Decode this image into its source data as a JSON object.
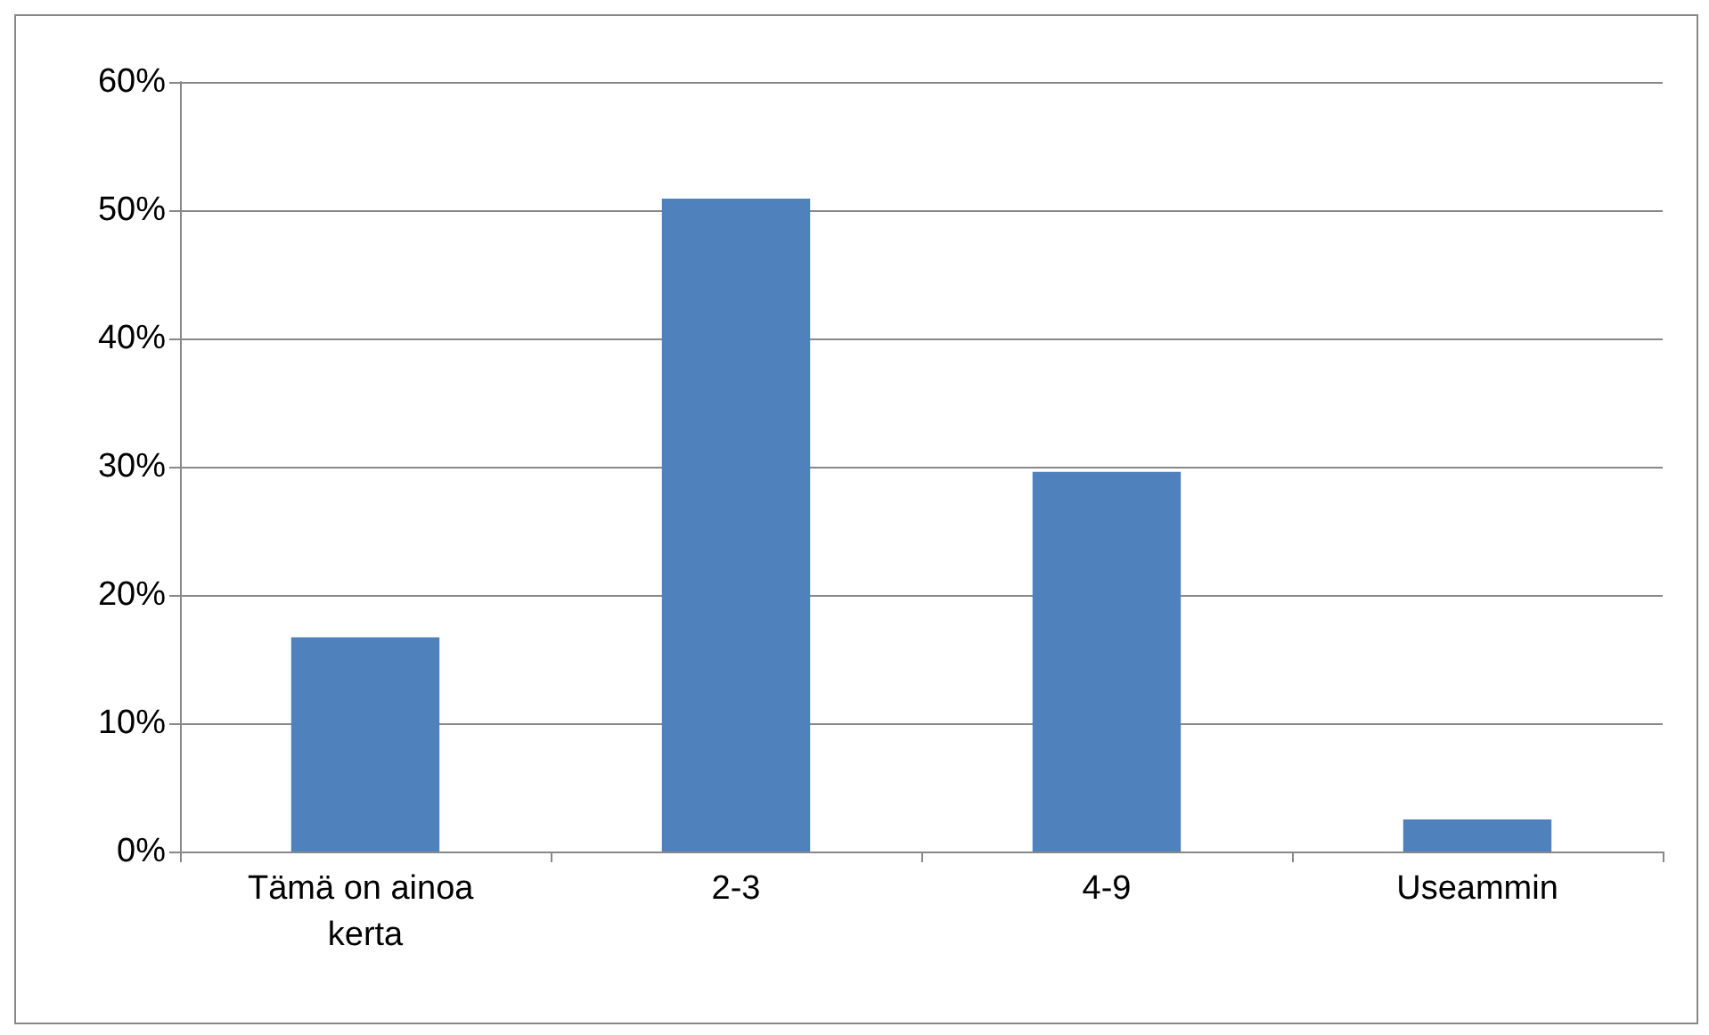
{
  "chart_data": {
    "type": "bar",
    "categories": [
      "Tämä on ainoa kerta",
      "2-3",
      "4-9",
      "Useammin"
    ],
    "values": [
      16.7,
      50.9,
      29.6,
      2.5
    ],
    "color": "#4f81bd",
    "ylim": [
      0,
      60
    ],
    "yticks": [
      {
        "value": 0,
        "label": "0%"
      },
      {
        "value": 10,
        "label": "10%"
      },
      {
        "value": 20,
        "label": "20%"
      },
      {
        "value": 30,
        "label": "30%"
      },
      {
        "value": 40,
        "label": "40%"
      },
      {
        "value": 50,
        "label": "50%"
      },
      {
        "value": 60,
        "label": "60%"
      }
    ],
    "grid": "y"
  }
}
